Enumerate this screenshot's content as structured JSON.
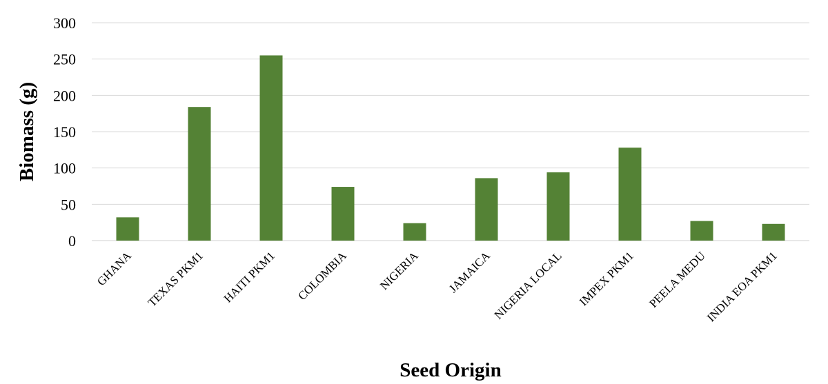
{
  "chart_data": {
    "type": "bar",
    "categories": [
      "GHANA",
      "TEXAS PKM1",
      "HAITI PKM1",
      "COLOMBIA",
      "NIGERIA",
      "JAMAICA",
      "NIGERIA LOCAL",
      "IMPEX PKM1",
      "PEELA MEDU",
      "INDIA EOA PKM1"
    ],
    "values": [
      32,
      184,
      255,
      74,
      24,
      86,
      94,
      128,
      27,
      23
    ],
    "title": "",
    "xlabel": "Seed Origin",
    "ylabel": "Biomass (g)",
    "ylim": [
      0,
      300
    ],
    "yticks": [
      "0",
      "50",
      "100",
      "150",
      "200",
      "250",
      "300"
    ],
    "grid": true,
    "legend": "none",
    "bar_color": "#548235",
    "grid_color": "#d9d9d9"
  }
}
